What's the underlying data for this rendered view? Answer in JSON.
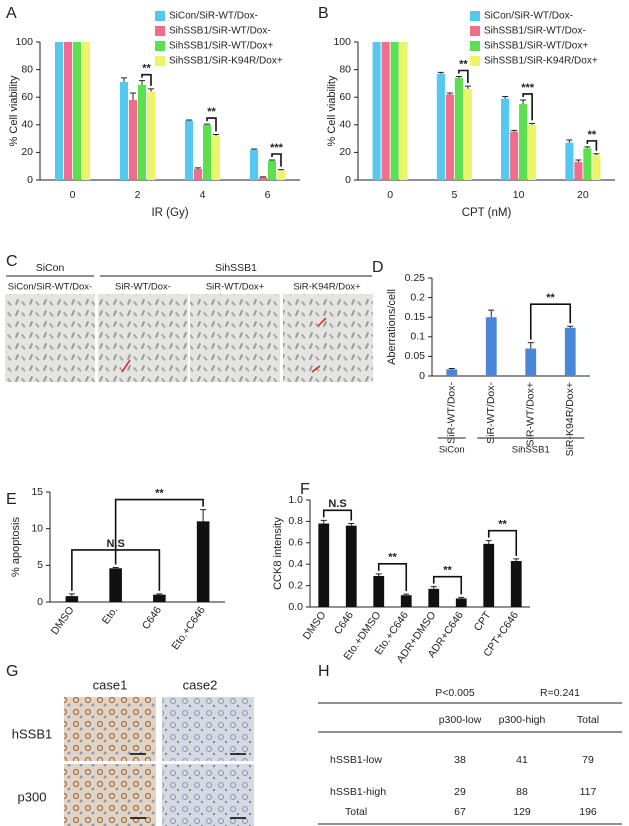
{
  "chart_data": [
    {
      "panel": "A",
      "type": "bar",
      "xlabel": "IR (Gy)",
      "ylabel": "% Cell viability",
      "categories": [
        "0",
        "2",
        "4",
        "6"
      ],
      "series": [
        {
          "name": "SiCon/SiR-WT/Dox-",
          "color": "#55c8f0",
          "values": [
            100,
            71,
            43,
            22
          ],
          "errors": [
            0,
            3,
            0.5,
            0.5
          ]
        },
        {
          "name": "SihSSB1/SiR-WT/Dox-",
          "color": "#f26d8d",
          "values": [
            100,
            58,
            8,
            2
          ],
          "errors": [
            0,
            5,
            0.8,
            0.3
          ]
        },
        {
          "name": "SihSSB1/SiR-WT/Dox+",
          "color": "#5de04f",
          "values": [
            100,
            69,
            40,
            14
          ],
          "errors": [
            0,
            3,
            0.5,
            0.5
          ]
        },
        {
          "name": "SihSSB1/SiR-K94R/Dox+",
          "color": "#ecf56a",
          "values": [
            100,
            64,
            32,
            7
          ],
          "errors": [
            0,
            2,
            1,
            0.5
          ]
        }
      ],
      "ylim": [
        0,
        100
      ],
      "yticks": [
        0,
        20,
        40,
        60,
        80,
        100
      ],
      "annotations": [
        "**",
        "**",
        "***"
      ]
    },
    {
      "panel": "B",
      "type": "bar",
      "xlabel": "CPT (nM)",
      "ylabel": "% Cell viability",
      "categories": [
        "0",
        "5",
        "10",
        "20"
      ],
      "series": [
        {
          "name": "SiCon/SiR-WT/Dox-",
          "color": "#55c8f0",
          "values": [
            100,
            77,
            59,
            27
          ],
          "errors": [
            0,
            1,
            1.5,
            2
          ]
        },
        {
          "name": "SihSSB1/SiR-WT/Dox-",
          "color": "#f26d8d",
          "values": [
            100,
            62,
            35,
            13
          ],
          "errors": [
            0,
            1,
            1,
            1.5
          ]
        },
        {
          "name": "SihSSB1/SiR-WT/Dox+",
          "color": "#5de04f",
          "values": [
            100,
            74,
            55,
            23
          ],
          "errors": [
            0,
            1,
            3,
            1
          ]
        },
        {
          "name": "SihSSB1/SiR-K94R/Dox+",
          "color": "#ecf56a",
          "values": [
            100,
            66,
            40,
            18
          ],
          "errors": [
            0,
            2,
            1,
            1
          ]
        }
      ],
      "ylim": [
        0,
        100
      ],
      "yticks": [
        0,
        20,
        40,
        60,
        80,
        100
      ],
      "annotations": [
        "**",
        "***",
        "**"
      ]
    },
    {
      "panel": "D",
      "type": "bar",
      "ylabel": "Aberrations/cell",
      "categories": [
        "SiR-WT/Dox-",
        "SiR-WT/Dox-",
        "SiR-WT/Dox+",
        "SiR-K94R/Dox+"
      ],
      "values": [
        0.017,
        0.15,
        0.07,
        0.123
      ],
      "errors": [
        0.002,
        0.018,
        0.015,
        0.004
      ],
      "color": "#4a86d8",
      "ylim": [
        0,
        0.25
      ],
      "yticks": [
        0,
        0.05,
        0.1,
        0.15,
        0.2,
        0.25
      ],
      "annotations": [
        "**"
      ],
      "group_labels": [
        "SiCon",
        "SihSSB1"
      ]
    },
    {
      "panel": "E",
      "type": "bar",
      "ylabel": "% apoptosis",
      "categories": [
        "DMSO",
        "Eto.",
        "C646",
        "Eto.+C646"
      ],
      "values": [
        0.8,
        4.6,
        1.0,
        11.0
      ],
      "errors": [
        0.3,
        0.1,
        0.1,
        1.6
      ],
      "color": "#111111",
      "ylim": [
        0,
        15
      ],
      "yticks": [
        0,
        5,
        10,
        15
      ],
      "annotations": [
        "N.S",
        "**"
      ]
    },
    {
      "panel": "F",
      "type": "bar",
      "ylabel": "CCK8 intensity",
      "categories": [
        "DMSO",
        "C646",
        "Eto.+DMSO",
        "Eto.+C646",
        "ADR+DMSO",
        "ADR+C646",
        "CPT",
        "CPT+C646"
      ],
      "values": [
        0.78,
        0.76,
        0.29,
        0.11,
        0.17,
        0.08,
        0.59,
        0.43
      ],
      "errors": [
        0.03,
        0.02,
        0.02,
        0.01,
        0.02,
        0.01,
        0.03,
        0.02
      ],
      "color": "#111111",
      "ylim": [
        0,
        1.0
      ],
      "yticks": [
        {
          "value": 0,
          "label": "0.0"
        },
        0.2,
        0.4,
        0.6,
        0.8,
        {
          "value": 1.0,
          "label": "1.0"
        }
      ],
      "annotations": [
        "N.S",
        "**",
        "**",
        "**"
      ]
    }
  ],
  "metaphase": {
    "panel": "C",
    "groups": [
      "SiCon",
      "SihSSB1"
    ],
    "labels": [
      "SiCon/SiR-WT/Dox-",
      "SiR-WT/Dox-",
      "SiR-WT/Dox+",
      "SiR-K94R/Dox+"
    ]
  },
  "ihc": {
    "panel": "G",
    "columns": [
      "case1",
      "case2"
    ],
    "rows": [
      "hSSB1",
      "p300"
    ]
  },
  "table": {
    "panel": "H",
    "stats": [
      "P<0.005",
      "R=0.241"
    ],
    "header": [
      "p300-low",
      "p300-high",
      "Total"
    ],
    "rows": [
      {
        "label": "hSSB1-low",
        "cells": [
          38,
          41,
          79
        ]
      },
      {
        "label": "hSSB1-high",
        "cells": [
          29,
          88,
          117
        ]
      },
      {
        "label": "Total",
        "cells": [
          67,
          129,
          196
        ]
      }
    ]
  }
}
